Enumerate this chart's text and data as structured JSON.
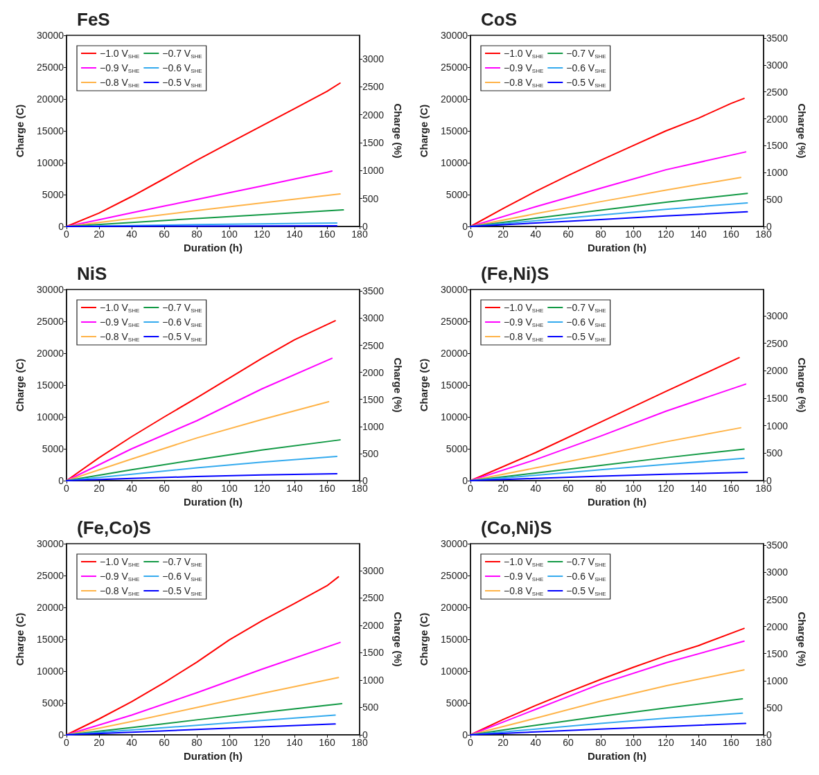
{
  "chart_data": [
    {
      "type": "line",
      "title": "FeS",
      "xlabel": "Duration (h)",
      "ylabel": "Charge (C)",
      "y2label": "Charge (%)",
      "xlim": [
        0,
        180
      ],
      "xticks": [
        0,
        20,
        40,
        60,
        80,
        100,
        120,
        140,
        160,
        180
      ],
      "ylim": [
        0,
        30000
      ],
      "yticks": [
        0,
        5000,
        10000,
        15000,
        20000,
        25000,
        30000
      ],
      "y2lim": [
        0,
        3420
      ],
      "y2ticks": [
        0,
        500,
        1000,
        1500,
        2000,
        2500,
        3000
      ],
      "grid": false,
      "legend": "top left",
      "marker": "none",
      "line_style": "solid",
      "series": [
        {
          "name": "−1.0 V$_{SHE}$",
          "color": "#ff0000",
          "x": [
            0,
            20,
            40,
            60,
            80,
            100,
            120,
            140,
            160,
            168
          ],
          "values": [
            0,
            2100,
            4700,
            7500,
            10400,
            13100,
            15800,
            18500,
            21200,
            22500
          ]
        },
        {
          "name": "−0.9 V$_{SHE}$",
          "color": "#ff00ff",
          "x": [
            0,
            20,
            40,
            60,
            80,
            100,
            120,
            140,
            160,
            163
          ],
          "values": [
            0,
            1050,
            2150,
            3200,
            4250,
            5300,
            6350,
            7450,
            8500,
            8700
          ]
        },
        {
          "name": "−0.8 V$_{SHE}$",
          "color": "#ffb347",
          "x": [
            0,
            40,
            80,
            120,
            168
          ],
          "values": [
            0,
            1250,
            2500,
            3700,
            5100
          ]
        },
        {
          "name": "−0.7 V$_{SHE}$",
          "color": "#119944",
          "x": [
            0,
            40,
            80,
            120,
            170
          ],
          "values": [
            0,
            620,
            1250,
            1850,
            2600
          ]
        },
        {
          "name": "−0.6 V$_{SHE}$",
          "color": "#33aaee",
          "x": [
            0,
            80,
            166
          ],
          "values": [
            0,
            300,
            550
          ]
        },
        {
          "name": "−0.5 V$_{SHE}$",
          "color": "#0000ff",
          "x": [
            0,
            80,
            166
          ],
          "values": [
            0,
            60,
            100
          ]
        }
      ]
    },
    {
      "type": "line",
      "title": "CoS",
      "xlabel": "Duration (h)",
      "ylabel": "Charge (C)",
      "y2label": "Charge (%)",
      "xlim": [
        0,
        180
      ],
      "xticks": [
        0,
        20,
        40,
        60,
        80,
        100,
        120,
        140,
        160,
        180
      ],
      "ylim": [
        0,
        30000
      ],
      "yticks": [
        0,
        5000,
        10000,
        15000,
        20000,
        25000,
        30000
      ],
      "y2lim": [
        0,
        3550
      ],
      "y2ticks": [
        0,
        500,
        1000,
        1500,
        2000,
        2500,
        3000,
        3500
      ],
      "grid": false,
      "legend": "top left",
      "marker": "none",
      "line_style": "solid",
      "series": [
        {
          "name": "−1.0 V$_{SHE}$",
          "color": "#ff0000",
          "x": [
            0,
            20,
            40,
            60,
            80,
            100,
            120,
            140,
            160,
            168
          ],
          "values": [
            0,
            2800,
            5500,
            8000,
            10400,
            12700,
            15000,
            17000,
            19300,
            20100
          ]
        },
        {
          "name": "−0.9 V$_{SHE}$",
          "color": "#ff00ff",
          "x": [
            0,
            40,
            80,
            120,
            169
          ],
          "values": [
            0,
            3100,
            6000,
            8900,
            11700
          ]
        },
        {
          "name": "−0.8 V$_{SHE}$",
          "color": "#ffb347",
          "x": [
            0,
            40,
            80,
            120,
            166
          ],
          "values": [
            0,
            2000,
            3900,
            5700,
            7700
          ]
        },
        {
          "name": "−0.7 V$_{SHE}$",
          "color": "#119944",
          "x": [
            0,
            40,
            80,
            120,
            170
          ],
          "values": [
            0,
            1300,
            2550,
            3800,
            5200
          ]
        },
        {
          "name": "−0.6 V$_{SHE}$",
          "color": "#33aaee",
          "x": [
            0,
            40,
            80,
            120,
            170
          ],
          "values": [
            0,
            900,
            1800,
            2700,
            3700
          ]
        },
        {
          "name": "−0.5 V$_{SHE}$",
          "color": "#0000ff",
          "x": [
            0,
            40,
            80,
            120,
            170
          ],
          "values": [
            0,
            550,
            1100,
            1650,
            2300
          ]
        }
      ]
    },
    {
      "type": "line",
      "title": "NiS",
      "xlabel": "Duration (h)",
      "ylabel": "Charge (C)",
      "y2label": "Charge (%)",
      "xlim": [
        0,
        180
      ],
      "xticks": [
        0,
        20,
        40,
        60,
        80,
        100,
        120,
        140,
        160,
        180
      ],
      "ylim": [
        0,
        30000
      ],
      "yticks": [
        0,
        5000,
        10000,
        15000,
        20000,
        25000,
        30000
      ],
      "y2lim": [
        0,
        3530
      ],
      "y2ticks": [
        0,
        500,
        1000,
        1500,
        2000,
        2500,
        3000,
        3500
      ],
      "grid": false,
      "legend": "top left",
      "marker": "none",
      "line_style": "solid",
      "series": [
        {
          "name": "−1.0 V$_{SHE}$",
          "color": "#ff0000",
          "x": [
            0,
            20,
            40,
            60,
            80,
            100,
            120,
            140,
            160,
            165
          ],
          "values": [
            0,
            3600,
            6900,
            10000,
            13000,
            16100,
            19200,
            22100,
            24500,
            25100
          ]
        },
        {
          "name": "−0.9 V$_{SHE}$",
          "color": "#ff00ff",
          "x": [
            0,
            40,
            80,
            120,
            163
          ],
          "values": [
            0,
            5000,
            9400,
            14400,
            19200
          ]
        },
        {
          "name": "−0.8 V$_{SHE}$",
          "color": "#ffb347",
          "x": [
            0,
            40,
            80,
            120,
            161
          ],
          "values": [
            0,
            3400,
            6700,
            9600,
            12400
          ]
        },
        {
          "name": "−0.7 V$_{SHE}$",
          "color": "#119944",
          "x": [
            0,
            40,
            80,
            120,
            168
          ],
          "values": [
            0,
            1700,
            3300,
            4800,
            6400
          ]
        },
        {
          "name": "−0.6 V$_{SHE}$",
          "color": "#33aaee",
          "x": [
            0,
            40,
            80,
            120,
            166
          ],
          "values": [
            0,
            1000,
            2000,
            2900,
            3800
          ]
        },
        {
          "name": "−0.5 V$_{SHE}$",
          "color": "#0000ff",
          "x": [
            0,
            40,
            80,
            120,
            166
          ],
          "values": [
            0,
            350,
            650,
            900,
            1100
          ]
        }
      ]
    },
    {
      "type": "line",
      "title": "(Fe,Ni)S",
      "xlabel": "Duration (h)",
      "ylabel": "Charge (C)",
      "y2label": "Charge (%)",
      "xlim": [
        0,
        180
      ],
      "xticks": [
        0,
        20,
        40,
        60,
        80,
        100,
        120,
        140,
        160,
        180
      ],
      "ylim": [
        0,
        30000
      ],
      "yticks": [
        0,
        5000,
        10000,
        15000,
        20000,
        25000,
        30000
      ],
      "y2lim": [
        0,
        3480
      ],
      "y2ticks": [
        0,
        500,
        1000,
        1500,
        2000,
        2500,
        3000
      ],
      "grid": false,
      "legend": "top left",
      "marker": "none",
      "line_style": "solid",
      "series": [
        {
          "name": "−1.0 V$_{SHE}$",
          "color": "#ff0000",
          "x": [
            0,
            40,
            80,
            120,
            165
          ],
          "values": [
            0,
            4400,
            9200,
            14000,
            19300
          ]
        },
        {
          "name": "−0.9 V$_{SHE}$",
          "color": "#ff00ff",
          "x": [
            0,
            40,
            80,
            120,
            169
          ],
          "values": [
            0,
            3300,
            7000,
            10900,
            15150
          ]
        },
        {
          "name": "−0.8 V$_{SHE}$",
          "color": "#ffb347",
          "x": [
            0,
            40,
            80,
            120,
            166
          ],
          "values": [
            0,
            2000,
            4000,
            6100,
            8300
          ]
        },
        {
          "name": "−0.7 V$_{SHE}$",
          "color": "#119944",
          "x": [
            0,
            40,
            80,
            120,
            168
          ],
          "values": [
            0,
            1200,
            2400,
            3600,
            4950
          ]
        },
        {
          "name": "−0.6 V$_{SHE}$",
          "color": "#33aaee",
          "x": [
            0,
            40,
            80,
            120,
            168
          ],
          "values": [
            0,
            850,
            1700,
            2550,
            3500
          ]
        },
        {
          "name": "−0.5 V$_{SHE}$",
          "color": "#0000ff",
          "x": [
            0,
            40,
            80,
            120,
            170
          ],
          "values": [
            0,
            350,
            700,
            1000,
            1300
          ]
        }
      ]
    },
    {
      "type": "line",
      "title": "(Fe,Co)S",
      "xlabel": "Duration (h)",
      "ylabel": "Charge (C)",
      "y2label": "Charge (%)",
      "xlim": [
        0,
        180
      ],
      "xticks": [
        0,
        20,
        40,
        60,
        80,
        100,
        120,
        140,
        160,
        180
      ],
      "ylim": [
        0,
        30000
      ],
      "yticks": [
        0,
        5000,
        10000,
        15000,
        20000,
        25000,
        30000
      ],
      "y2lim": [
        0,
        3490
      ],
      "y2ticks": [
        0,
        500,
        1000,
        1500,
        2000,
        2500,
        3000
      ],
      "grid": false,
      "legend": "top left",
      "marker": "none",
      "line_style": "solid",
      "series": [
        {
          "name": "−1.0 V$_{SHE}$",
          "color": "#ff0000",
          "x": [
            0,
            20,
            40,
            60,
            80,
            100,
            120,
            140,
            160,
            167
          ],
          "values": [
            0,
            2500,
            5200,
            8200,
            11400,
            14900,
            17900,
            20600,
            23400,
            24800
          ]
        },
        {
          "name": "−0.9 V$_{SHE}$",
          "color": "#ff00ff",
          "x": [
            0,
            40,
            80,
            120,
            168
          ],
          "values": [
            0,
            3100,
            6600,
            10300,
            14500
          ]
        },
        {
          "name": "−0.8 V$_{SHE}$",
          "color": "#ffb347",
          "x": [
            0,
            40,
            80,
            120,
            167
          ],
          "values": [
            0,
            2100,
            4300,
            6500,
            9000
          ]
        },
        {
          "name": "−0.7 V$_{SHE}$",
          "color": "#119944",
          "x": [
            0,
            40,
            80,
            120,
            169
          ],
          "values": [
            0,
            1150,
            2350,
            3500,
            4900
          ]
        },
        {
          "name": "−0.6 V$_{SHE}$",
          "color": "#33aaee",
          "x": [
            0,
            40,
            80,
            120,
            165
          ],
          "values": [
            0,
            750,
            1500,
            2250,
            3100
          ]
        },
        {
          "name": "−0.5 V$_{SHE}$",
          "color": "#0000ff",
          "x": [
            0,
            40,
            80,
            120,
            165
          ],
          "values": [
            0,
            400,
            850,
            1250,
            1700
          ]
        }
      ]
    },
    {
      "type": "line",
      "title": "(Co,Ni)S",
      "xlabel": "Duration (h)",
      "ylabel": "Charge (C)",
      "y2label": "Charge (%)",
      "xlim": [
        0,
        180
      ],
      "xticks": [
        0,
        20,
        40,
        60,
        80,
        100,
        120,
        140,
        160,
        180
      ],
      "ylim": [
        0,
        30000
      ],
      "yticks": [
        0,
        5000,
        10000,
        15000,
        20000,
        25000,
        30000
      ],
      "y2lim": [
        0,
        3530
      ],
      "y2ticks": [
        0,
        500,
        1000,
        1500,
        2000,
        2500,
        3000,
        3500
      ],
      "grid": false,
      "legend": "top left",
      "marker": "none",
      "line_style": "solid",
      "series": [
        {
          "name": "−1.0 V$_{SHE}$",
          "color": "#ff0000",
          "x": [
            0,
            20,
            40,
            60,
            80,
            100,
            120,
            140,
            168
          ],
          "values": [
            0,
            2400,
            4600,
            6700,
            8700,
            10600,
            12400,
            14000,
            16700
          ]
        },
        {
          "name": "−0.9 V$_{SHE}$",
          "color": "#ff00ff",
          "x": [
            0,
            20,
            40,
            80,
            120,
            168
          ],
          "values": [
            0,
            2000,
            4000,
            8000,
            11300,
            14700
          ]
        },
        {
          "name": "−0.8 V$_{SHE}$",
          "color": "#ffb347",
          "x": [
            0,
            40,
            80,
            120,
            168
          ],
          "values": [
            0,
            2600,
            5300,
            7700,
            10200
          ]
        },
        {
          "name": "−0.7 V$_{SHE}$",
          "color": "#119944",
          "x": [
            0,
            40,
            80,
            120,
            167
          ],
          "values": [
            0,
            1500,
            2900,
            4200,
            5650
          ]
        },
        {
          "name": "−0.6 V$_{SHE}$",
          "color": "#33aaee",
          "x": [
            0,
            40,
            80,
            120,
            167
          ],
          "values": [
            0,
            900,
            1800,
            2600,
            3400
          ]
        },
        {
          "name": "−0.5 V$_{SHE}$",
          "color": "#0000ff",
          "x": [
            0,
            40,
            80,
            120,
            169
          ],
          "values": [
            0,
            450,
            900,
            1300,
            1800
          ]
        }
      ]
    }
  ]
}
